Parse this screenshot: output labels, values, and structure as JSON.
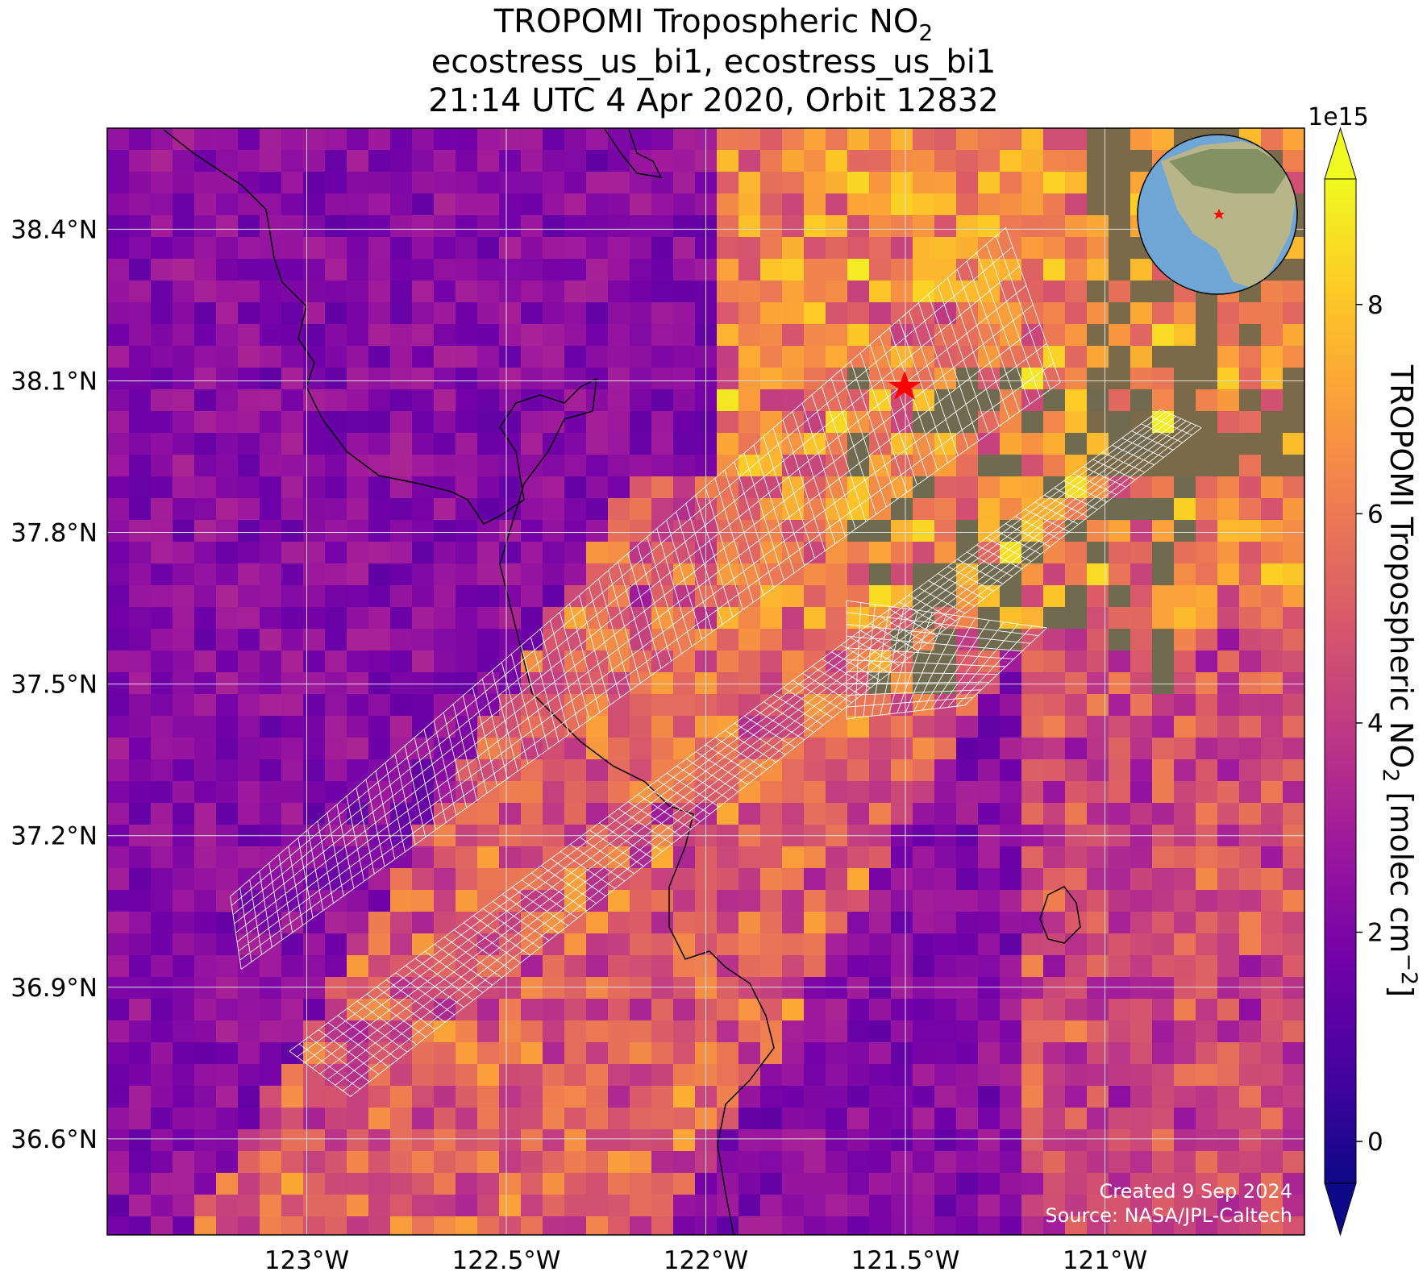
{
  "title": {
    "line1": "TROPOMI Tropospheric NO",
    "line1_sub": "2",
    "line2": "ecostress_us_bi1, ecostress_us_bi1",
    "line3": "21:14 UTC 4 Apr 2020, Orbit 12832"
  },
  "map": {
    "xlim": [
      -123.5,
      -120.5
    ],
    "ylim": [
      36.41,
      38.6
    ],
    "grid": true,
    "grid_color": "#dddddd",
    "xticks": [
      {
        "value": -123,
        "label": "123°W"
      },
      {
        "value": -122.5,
        "label": "122.5°W"
      },
      {
        "value": -122,
        "label": "122°W"
      },
      {
        "value": -121.5,
        "label": "121.5°W"
      },
      {
        "value": -121,
        "label": "121°W"
      }
    ],
    "yticks": [
      {
        "value": 38.4,
        "label": "38.4°N"
      },
      {
        "value": 38.1,
        "label": "38.1°N"
      },
      {
        "value": 37.8,
        "label": "37.8°N"
      },
      {
        "value": 37.5,
        "label": "37.5°N"
      },
      {
        "value": 37.2,
        "label": "37.2°N"
      },
      {
        "value": 36.9,
        "label": "36.9°N"
      },
      {
        "value": 36.6,
        "label": "36.6°N"
      }
    ]
  },
  "colorbar": {
    "label": "TROPOMI Tropospheric NO",
    "label_sub": "2",
    "label_unit": " [molec cm",
    "label_sup": "−2",
    "label_end": "]",
    "multiplier": "1e15",
    "lim": [
      -0.4,
      9.2
    ],
    "ticks": [
      0,
      2,
      4,
      6,
      8
    ],
    "extend": "both",
    "colormap": [
      "#0d0887",
      "#46039f",
      "#7201a8",
      "#9c179e",
      "#bd3786",
      "#d8576b",
      "#ed7953",
      "#fb9f3a",
      "#fdca26",
      "#f0f921"
    ]
  },
  "credits": [
    "Created 9 Sep 2024",
    "Source: NASA/JPL-Caltech"
  ]
}
